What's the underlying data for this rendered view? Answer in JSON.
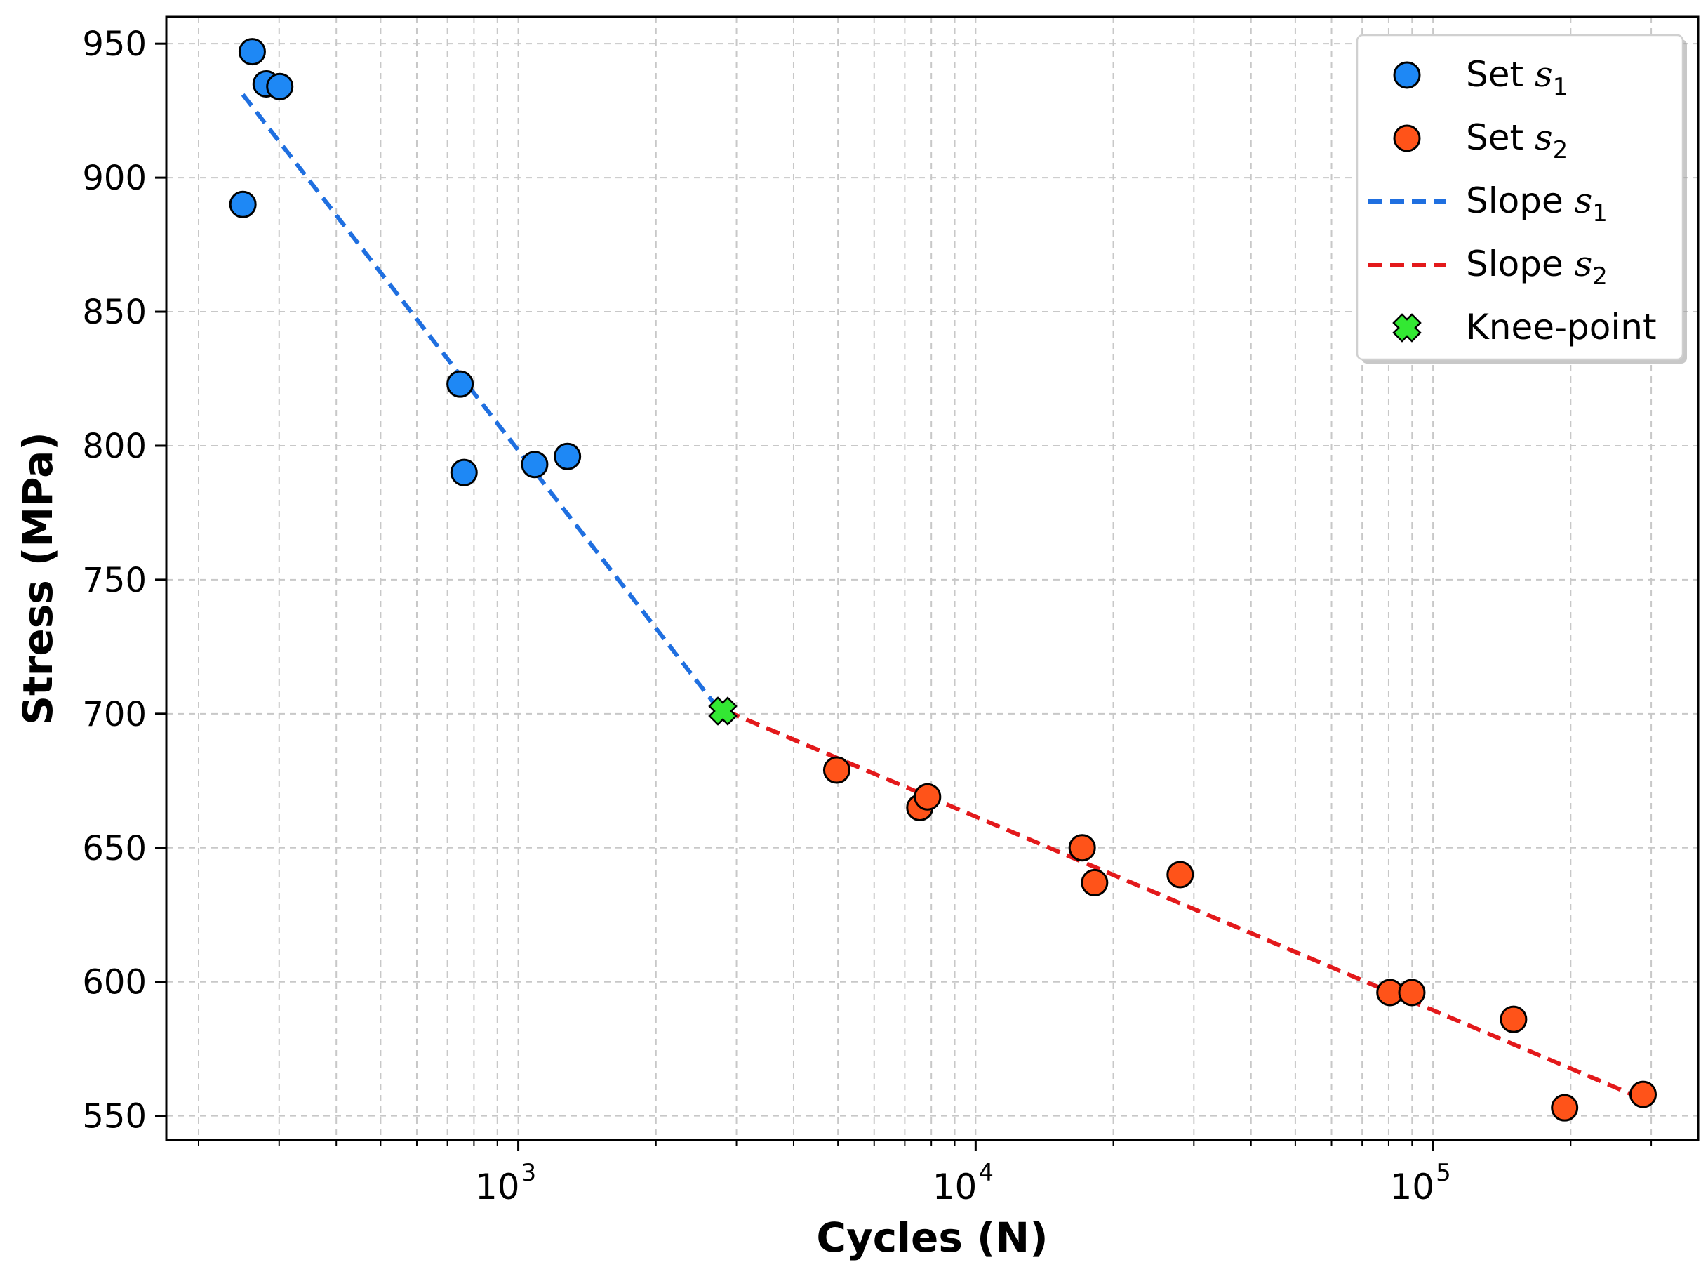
{
  "chart_data": {
    "type": "scatter",
    "xlabel": "Cycles (N)",
    "ylabel": "Stress (MPa)",
    "xscale": "log",
    "xlim": [
      170,
      380000
    ],
    "ylim": [
      541,
      960
    ],
    "x_major_ticks": [
      {
        "value": 1000,
        "base": "10",
        "exp": "3"
      },
      {
        "value": 10000,
        "base": "10",
        "exp": "4"
      },
      {
        "value": 100000,
        "base": "10",
        "exp": "5"
      }
    ],
    "y_ticks": [
      550,
      600,
      650,
      700,
      750,
      800,
      850,
      900,
      950
    ],
    "grid": true,
    "legend_position": "top-right",
    "colors": {
      "set1": "#1e88f5",
      "set2": "#ff5319",
      "slope1": "#1f6fe0",
      "slope2": "#e3191b",
      "knee": "#33e833",
      "grid": "#c8c8c8"
    },
    "series": [
      {
        "name": "Set s1",
        "legend_text": "Set ",
        "legend_math": "s",
        "legend_sub": "1",
        "kind": "scatter",
        "color_key": "set1",
        "points": [
          [
            250,
            890
          ],
          [
            262,
            947
          ],
          [
            281,
            935
          ],
          [
            301,
            934
          ],
          [
            746,
            823
          ],
          [
            761,
            790
          ],
          [
            1086,
            793
          ],
          [
            1281,
            796
          ]
        ]
      },
      {
        "name": "Set s2",
        "legend_text": "Set ",
        "legend_math": "s",
        "legend_sub": "2",
        "kind": "scatter",
        "color_key": "set2",
        "points": [
          [
            4970,
            679
          ],
          [
            7550,
            665
          ],
          [
            7850,
            669
          ],
          [
            17100,
            650
          ],
          [
            18200,
            637
          ],
          [
            28000,
            640
          ],
          [
            80500,
            596
          ],
          [
            89900,
            596
          ],
          [
            150000,
            586
          ],
          [
            194000,
            553
          ],
          [
            288000,
            558
          ]
        ]
      },
      {
        "name": "Slope s1",
        "legend_text": "Slope ",
        "legend_math": "s",
        "legend_sub": "1",
        "kind": "line",
        "color_key": "slope1",
        "points": [
          [
            250,
            931
          ],
          [
            2820,
            699
          ]
        ]
      },
      {
        "name": "Slope s2",
        "legend_text": "Slope ",
        "legend_math": "s",
        "legend_sub": "2",
        "kind": "line",
        "color_key": "slope2",
        "points": [
          [
            2850,
            701
          ],
          [
            290000,
            556
          ]
        ]
      },
      {
        "name": "Knee-point",
        "legend_text": "Knee-point",
        "legend_math": "",
        "legend_sub": "",
        "kind": "marker",
        "color_key": "knee",
        "points": [
          [
            2800,
            701
          ]
        ]
      }
    ]
  }
}
